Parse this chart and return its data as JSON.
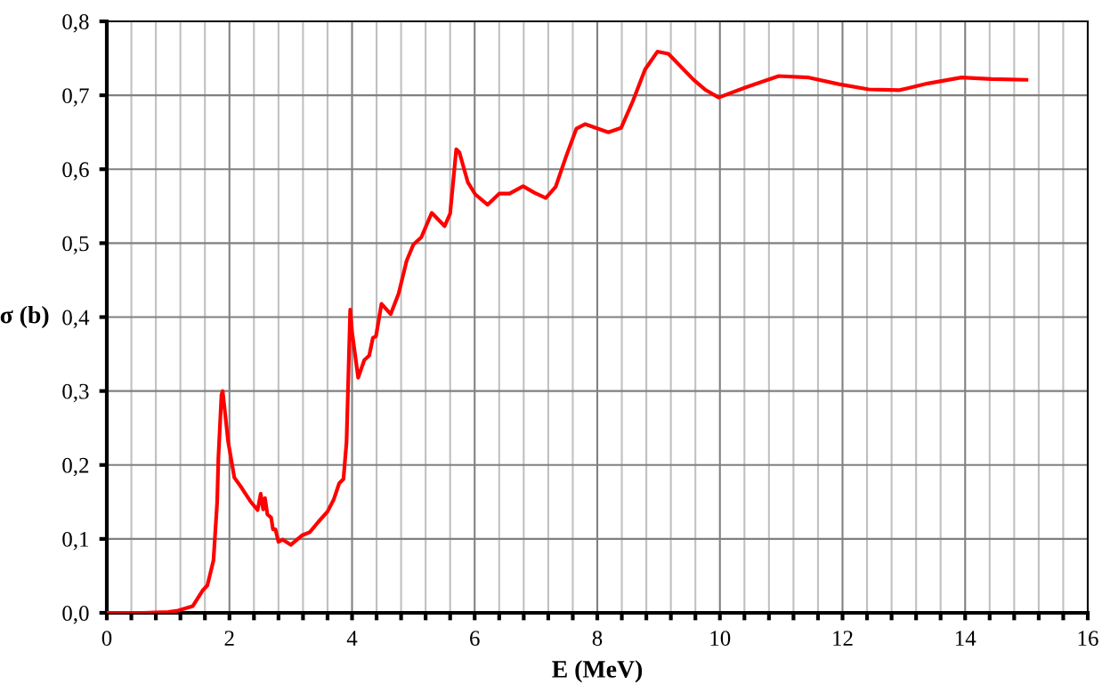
{
  "chart_data": {
    "type": "line",
    "xlabel": "E (MeV)",
    "ylabel": "σ (b)",
    "xlim": [
      0,
      16
    ],
    "ylim": [
      0,
      0.8
    ],
    "xticks": [
      0,
      {
        "value": 0.4,
        "label": null
      },
      {
        "value": 0.8,
        "label": null
      },
      {
        "value": 1.2,
        "label": null
      },
      {
        "value": 1.6,
        "label": null
      },
      2,
      {
        "value": 2.4,
        "label": null
      },
      {
        "value": 2.8,
        "label": null
      },
      {
        "value": 3.2,
        "label": null
      },
      {
        "value": 3.6,
        "label": null
      },
      4,
      {
        "value": 4.4,
        "label": null
      },
      {
        "value": 4.8,
        "label": null
      },
      {
        "value": 5.2,
        "label": null
      },
      {
        "value": 5.6,
        "label": null
      },
      6,
      {
        "value": 6.4,
        "label": null
      },
      {
        "value": 6.8,
        "label": null
      },
      {
        "value": 7.2,
        "label": null
      },
      {
        "value": 7.6,
        "label": null
      },
      8,
      {
        "value": 8.4,
        "label": null
      },
      {
        "value": 8.8,
        "label": null
      },
      {
        "value": 9.2,
        "label": null
      },
      {
        "value": 9.6,
        "label": null
      },
      10,
      {
        "value": 10.4,
        "label": null
      },
      {
        "value": 10.8,
        "label": null
      },
      {
        "value": 11.2,
        "label": null
      },
      {
        "value": 11.6,
        "label": null
      },
      12,
      {
        "value": 12.4,
        "label": null
      },
      {
        "value": 12.8,
        "label": null
      },
      {
        "value": 13.2,
        "label": null
      },
      {
        "value": 13.6,
        "label": null
      },
      14,
      {
        "value": 14.4,
        "label": null
      },
      {
        "value": 14.8,
        "label": null
      },
      {
        "value": 15.2,
        "label": null
      },
      {
        "value": 15.6,
        "label": null
      },
      16
    ],
    "yticks": [
      {
        "value": 0,
        "label": "0,0"
      },
      {
        "value": 0.1,
        "label": "0,1"
      },
      {
        "value": 0.2,
        "label": "0,2"
      },
      {
        "value": 0.3,
        "label": "0,3"
      },
      {
        "value": 0.4,
        "label": "0,4"
      },
      {
        "value": 0.5,
        "label": "0,5"
      },
      {
        "value": 0.6,
        "label": "0,6"
      },
      {
        "value": 0.7,
        "label": "0,7"
      },
      {
        "value": 0.8,
        "label": "0,8"
      }
    ],
    "grid": true,
    "legend": false,
    "marker": "none",
    "line_style": "solid",
    "series": [
      {
        "color": "#ff0000",
        "x": [
          0,
          0.6,
          1.0,
          1.16,
          1.4,
          1.57,
          1.64,
          1.74,
          1.8,
          1.82,
          1.87,
          1.89,
          1.98,
          2.08,
          2.2,
          2.34,
          2.46,
          2.51,
          2.55,
          2.58,
          2.62,
          2.68,
          2.71,
          2.75,
          2.8,
          2.87,
          3.0,
          3.19,
          3.31,
          3.45,
          3.6,
          3.7,
          3.79,
          3.86,
          3.91,
          3.97,
          4.0,
          4.1,
          4.2,
          4.28,
          4.34,
          4.39,
          4.48,
          4.63,
          4.76,
          4.89,
          5.0,
          5.13,
          5.3,
          5.51,
          5.6,
          5.7,
          5.75,
          5.89,
          6.01,
          6.21,
          6.4,
          6.57,
          6.79,
          6.98,
          7.16,
          7.32,
          7.49,
          7.66,
          7.8,
          8.18,
          8.39,
          8.58,
          8.78,
          8.98,
          9.16,
          9.57,
          9.77,
          9.98,
          10.43,
          10.96,
          11.45,
          11.94,
          12.43,
          12.93,
          13.39,
          13.94,
          14.43,
          15.0
        ],
        "values": [
          0,
          0,
          0.001,
          0.003,
          0.009,
          0.031,
          0.037,
          0.071,
          0.15,
          0.21,
          0.295,
          0.3,
          0.231,
          0.183,
          0.169,
          0.151,
          0.139,
          0.161,
          0.14,
          0.155,
          0.133,
          0.129,
          0.113,
          0.113,
          0.096,
          0.099,
          0.092,
          0.105,
          0.109,
          0.123,
          0.137,
          0.153,
          0.175,
          0.181,
          0.231,
          0.41,
          0.38,
          0.318,
          0.342,
          0.348,
          0.372,
          0.374,
          0.418,
          0.404,
          0.432,
          0.476,
          0.498,
          0.508,
          0.541,
          0.523,
          0.54,
          0.627,
          0.623,
          0.582,
          0.566,
          0.552,
          0.567,
          0.567,
          0.577,
          0.568,
          0.561,
          0.576,
          0.617,
          0.655,
          0.661,
          0.65,
          0.656,
          0.692,
          0.735,
          0.759,
          0.756,
          0.721,
          0.707,
          0.697,
          0.711,
          0.726,
          0.724,
          0.715,
          0.708,
          0.707,
          0.716,
          0.724,
          0.722,
          0.721
        ]
      }
    ]
  }
}
